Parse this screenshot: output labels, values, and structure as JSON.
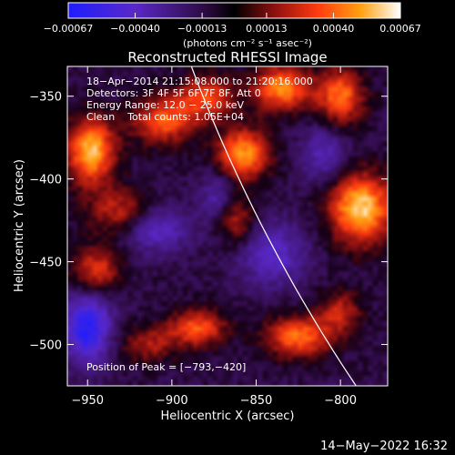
{
  "chart_data": {
    "type": "heatmap",
    "title": "Reconstructed RHESSI Image",
    "xlabel": "Heliocentric X (arcsec)",
    "ylabel": "Heliocentric Y (arcsec)",
    "xlim": [
      -962,
      -772
    ],
    "ylim": [
      -525,
      -332
    ],
    "x_ticks": [
      -950,
      -900,
      -850,
      -800
    ],
    "x_tick_labels": [
      "−950",
      "−900",
      "−850",
      "−800"
    ],
    "y_ticks": [
      -350,
      -400,
      -450,
      -500
    ],
    "y_tick_labels": [
      "−350",
      "−400",
      "−450",
      "−500"
    ],
    "colorbar": {
      "range": [
        -0.00067,
        0.00067
      ],
      "ticks": [
        -0.00067,
        -0.0004,
        -0.00013,
        0.00013,
        0.0004,
        0.00067
      ],
      "tick_labels": [
        "−0.00067",
        "−0.00040",
        "−0.00013",
        "0.00013",
        "0.00040",
        "0.00067"
      ],
      "units": "(photons cm⁻² s⁻¹ asec⁻²)",
      "colormap": "blue-purple-red-orange-yellow-white"
    },
    "annotations": [
      "18−Apr−2014 21:15:08.000 to 21:20:16.000",
      "Detectors: 3F 4F 5F 6F 7F 8F, Att 0",
      "Energy Range: 12.0 − 25.0 keV",
      "Clean    Total counts: 1.05E+04"
    ],
    "peak_label": "Position of Peak = [−793,−420]",
    "peak": [
      -793,
      -420
    ],
    "limb": {
      "color": "#ffffff"
    },
    "intensity_map": {
      "background": -8e-05,
      "sources": [
        {
          "x": -948,
          "y": -383,
          "sx": 10,
          "sy": 14,
          "amp": 0.00065
        },
        {
          "x": -930,
          "y": -420,
          "sx": 14,
          "sy": 10,
          "amp": 0.00035
        },
        {
          "x": -945,
          "y": -455,
          "sx": 10,
          "sy": 10,
          "amp": 0.0004
        },
        {
          "x": -905,
          "y": -365,
          "sx": 14,
          "sy": 10,
          "amp": 0.00045
        },
        {
          "x": -880,
          "y": -350,
          "sx": 12,
          "sy": 9,
          "amp": 0.00042
        },
        {
          "x": -858,
          "y": -385,
          "sx": 11,
          "sy": 11,
          "amp": 0.00058
        },
        {
          "x": -862,
          "y": -425,
          "sx": 8,
          "sy": 10,
          "amp": 0.00033
        },
        {
          "x": -835,
          "y": -345,
          "sx": 12,
          "sy": 10,
          "amp": 0.00055
        },
        {
          "x": -800,
          "y": -350,
          "sx": 10,
          "sy": 12,
          "amp": 0.0005
        },
        {
          "x": -788,
          "y": -418,
          "sx": 13,
          "sy": 15,
          "amp": 0.00069
        },
        {
          "x": -825,
          "y": -495,
          "sx": 14,
          "sy": 9,
          "amp": 0.0005
        },
        {
          "x": -885,
          "y": -490,
          "sx": 12,
          "sy": 8,
          "amp": 0.00045
        },
        {
          "x": -800,
          "y": -480,
          "sx": 9,
          "sy": 9,
          "amp": 0.00032
        },
        {
          "x": -915,
          "y": -500,
          "sx": 12,
          "sy": 8,
          "amp": 0.00028
        },
        {
          "x": -873,
          "y": -410,
          "sx": 7,
          "sy": 12,
          "amp": -0.00025
        },
        {
          "x": -910,
          "y": -430,
          "sx": 14,
          "sy": 10,
          "amp": -0.00035
        },
        {
          "x": -950,
          "y": -490,
          "sx": 10,
          "sy": 15,
          "amp": -0.00055
        },
        {
          "x": -840,
          "y": -445,
          "sx": 14,
          "sy": 14,
          "amp": -0.00032
        },
        {
          "x": -810,
          "y": -385,
          "sx": 10,
          "sy": 12,
          "amp": -0.00028
        }
      ]
    }
  },
  "footer": {
    "date": "14−May−2022 16:32"
  }
}
